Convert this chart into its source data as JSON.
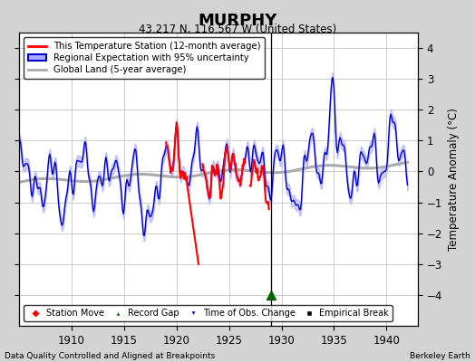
{
  "title": "MURPHY",
  "subtitle": "43.217 N, 116.567 W (United States)",
  "ylabel": "Temperature Anomaly (°C)",
  "footer_left": "Data Quality Controlled and Aligned at Breakpoints",
  "footer_right": "Berkeley Earth",
  "xlim": [
    1905,
    1943
  ],
  "ylim": [
    -5,
    4.5
  ],
  "yticks": [
    -4,
    -3,
    -2,
    -1,
    0,
    1,
    2,
    3,
    4
  ],
  "xticks": [
    1910,
    1915,
    1920,
    1925,
    1930,
    1935,
    1940
  ],
  "background_color": "#d3d3d3",
  "plot_bg_color": "#ffffff",
  "grid_color": "#cccccc",
  "blue_line_color": "#0000cc",
  "blue_fill_color": "#aaaaff",
  "red_line_color": "#ff0000",
  "gray_line_color": "#aaaaaa",
  "event_marker_year": 1929.0,
  "legend_entries": [
    "This Temperature Station (12-month average)",
    "Regional Expectation with 95% uncertainty",
    "Global Land (5-year average)"
  ],
  "marker_legend": [
    "Station Move",
    "Record Gap",
    "Time of Obs. Change",
    "Empirical Break"
  ]
}
